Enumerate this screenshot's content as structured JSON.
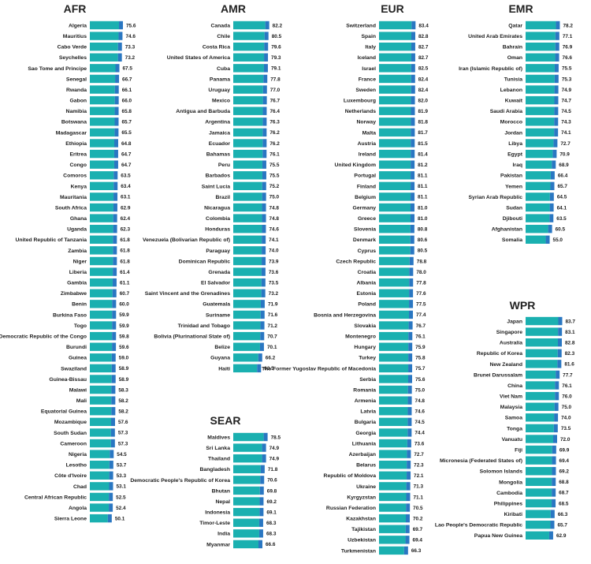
{
  "colors": {
    "bar": "#1ab0b0",
    "bar_tip": "#2a77c2",
    "text": "#1a1a1a"
  },
  "chart_data": [
    {
      "type": "bar",
      "orientation": "horizontal",
      "title": "AFR",
      "xlim": [
        0,
        90
      ],
      "categories": [
        "Algeria",
        "Mauritius",
        "Cabo Verde",
        "Seychelles",
        "Sao Tome and Principe",
        "Senegal",
        "Rwanda",
        "Gabon",
        "Namibia",
        "Botswana",
        "Madagascar",
        "Ethiopia",
        "Eritrea",
        "Congo",
        "Comoros",
        "Kenya",
        "Mauritania",
        "South Africa",
        "Ghana",
        "Uganda",
        "United Republic of Tanzania",
        "Zambia",
        "Niger",
        "Liberia",
        "Gambia",
        "Zimbabwe",
        "Benin",
        "Burkina Faso",
        "Togo",
        "Democratic Republic of the Congo",
        "Burundi",
        "Guinea",
        "Swaziland",
        "Guinea-Bissau",
        "Malawi",
        "Mali",
        "Equatorial Guinea",
        "Mozambique",
        "South Sudan",
        "Cameroon",
        "Nigeria",
        "Lesotho",
        "Côte d'Ivoire",
        "Chad",
        "Central African Republic",
        "Angola",
        "Sierra Leone"
      ],
      "values": [
        75.6,
        74.6,
        73.3,
        73.2,
        67.5,
        66.7,
        66.1,
        66.0,
        65.8,
        65.7,
        65.5,
        64.8,
        64.7,
        64.7,
        63.5,
        63.4,
        63.1,
        62.9,
        62.4,
        62.3,
        61.8,
        61.8,
        61.8,
        61.4,
        61.1,
        60.7,
        60.0,
        59.9,
        59.9,
        59.8,
        59.6,
        59.0,
        58.9,
        58.9,
        58.3,
        58.2,
        58.2,
        57.6,
        57.3,
        57.3,
        54.5,
        53.7,
        53.3,
        53.1,
        52.5,
        52.4,
        50.1
      ],
      "value_labels": [
        "75.6",
        "74.6",
        "73.3",
        "73.2",
        "67.5",
        "66.7",
        "66.1",
        "66.0",
        "65.8",
        "65.7",
        "65.5",
        "64.8",
        "64.7",
        "64.7",
        "63.5",
        "63.4",
        "63.1",
        "62.9",
        "62.4",
        "62.3",
        "61.8",
        "61.8",
        "61.8",
        "61.4",
        "61.1",
        "60.7",
        "60.0",
        "59.9",
        "59.9",
        "59.8",
        "59.6",
        "59.0",
        "58.9",
        "58.9",
        "58.3",
        "58.2",
        "58.2",
        "57.6",
        "57.3",
        "57.3",
        "54.5",
        "53.7",
        "53.3",
        "53.1",
        "52.5",
        "52.4",
        "50.1"
      ]
    },
    {
      "type": "bar",
      "orientation": "horizontal",
      "title": "AMR",
      "xlim": [
        0,
        90
      ],
      "categories": [
        "Canada",
        "Chile",
        "Costa Rica",
        "United States of America",
        "Cuba",
        "Panama",
        "Uruguay",
        "Mexico",
        "Antigua and Barbuda",
        "Argentina",
        "Jamaica",
        "Ecuador",
        "Bahamas",
        "Peru",
        "Barbados",
        "Saint Lucia",
        "Brazil",
        "Nicaragua",
        "Colombia",
        "Honduras",
        "Venezuela (Bolivarian Republic of)",
        "Paraguay",
        "Dominican Republic",
        "Grenada",
        "El Salvador",
        "Saint Vincent and the Grenadines",
        "Guatemala",
        "Suriname",
        "Trinidad and Tobago",
        "Bolivia (Plurinational State of)",
        "Belize",
        "Guyana",
        "Haiti"
      ],
      "values": [
        82.2,
        80.5,
        79.6,
        79.3,
        79.1,
        77.8,
        77.0,
        76.7,
        76.4,
        76.3,
        76.2,
        76.2,
        76.1,
        75.5,
        75.5,
        75.2,
        75.0,
        74.8,
        74.8,
        74.6,
        74.1,
        74.0,
        73.9,
        73.6,
        73.5,
        73.2,
        71.9,
        71.6,
        71.2,
        70.7,
        70.1,
        66.2,
        63.5
      ],
      "value_labels": [
        "82.2",
        "80.5",
        "79.6",
        "79.3",
        "79.1",
        "77.8",
        "77.0",
        "76.7",
        "76.4",
        "76.3",
        "76.2",
        "76.2",
        "76.1",
        "75.5",
        "75.5",
        "75.2",
        "75.0",
        "74.8",
        "74.8",
        "74.6",
        "74.1",
        "74.0",
        "73.9",
        "73.6",
        "73.5",
        "73.2",
        "71.9",
        "71.6",
        "71.2",
        "70.7",
        "70.1",
        "66.2",
        "63.5"
      ]
    },
    {
      "type": "bar",
      "orientation": "horizontal",
      "title": "SEAR",
      "xlim": [
        0,
        90
      ],
      "categories": [
        "Maldives",
        "Sri Lanka",
        "Thailand",
        "Bangladesh",
        "Democratic People's Republic of Korea",
        "Bhutan",
        "Nepal",
        "Indonesia",
        "Timor-Leste",
        "India",
        "Myanmar"
      ],
      "values": [
        78.5,
        74.9,
        74.9,
        71.8,
        70.6,
        69.8,
        69.2,
        69.1,
        68.3,
        68.3,
        66.6
      ],
      "value_labels": [
        "78.5",
        "74.9",
        "74.9",
        "71.8",
        "70.6",
        "69.8",
        "69.2",
        "69.1",
        "68.3",
        "68.3",
        "66.6"
      ]
    },
    {
      "type": "bar",
      "orientation": "horizontal",
      "title": "EUR",
      "xlim": [
        0,
        90
      ],
      "categories": [
        "Switzerland",
        "Spain",
        "Italy",
        "Iceland",
        "Israel",
        "France",
        "Sweden",
        "Luxembourg",
        "Netherlands",
        "Norway",
        "Malta",
        "Austria",
        "Ireland",
        "United Kingdom",
        "Portugal",
        "Finland",
        "Belgium",
        "Germany",
        "Greece",
        "Slovenia",
        "Denmark",
        "Cyprus",
        "Czech Republic",
        "Croatia",
        "Albania",
        "Estonia",
        "Poland",
        "Bosnia and Herzegovina",
        "Slovakia",
        "Montenegro",
        "Hungary",
        "Turkey",
        "The Former Yugoslav Republic of Macedonia",
        "Serbia",
        "Romania",
        "Armenia",
        "Latvia",
        "Bulgaria",
        "Georgia",
        "Lithuania",
        "Azerbaijan",
        "Belarus",
        "Republic of Moldova",
        "Ukraine",
        "Kyrgyzstan",
        "Russian Federation",
        "Kazakhstan",
        "Tajikistan",
        "Uzbekistan",
        "Turkmenistan"
      ],
      "values": [
        83.4,
        82.8,
        82.7,
        82.7,
        82.5,
        82.4,
        82.4,
        82.0,
        81.9,
        81.8,
        81.7,
        81.5,
        81.4,
        81.2,
        81.1,
        81.1,
        81.1,
        81.0,
        81.0,
        80.8,
        80.6,
        80.5,
        78.8,
        78.0,
        77.8,
        77.6,
        77.5,
        77.4,
        76.7,
        76.1,
        75.9,
        75.8,
        75.7,
        75.6,
        75.0,
        74.8,
        74.6,
        74.5,
        74.4,
        73.6,
        72.7,
        72.3,
        72.1,
        71.3,
        71.1,
        70.5,
        70.2,
        69.7,
        69.4,
        66.3
      ],
      "value_labels": [
        "83.4",
        "82.8",
        "82.7",
        "82.7",
        "82.5",
        "82.4",
        "82.4",
        "82.0",
        "81.9",
        "81.8",
        "81.7",
        "81.5",
        "81.4",
        "81.2",
        "81.1",
        "81.1",
        "81.1",
        "81.0",
        "81.0",
        "80.8",
        "80.6",
        "80.5",
        "78.8",
        "78.0",
        "77.8",
        "77.6",
        "77.5",
        "77.4",
        "76.7",
        "76.1",
        "75.9",
        "75.8",
        "75.7",
        "75.6",
        "75.0",
        "74.8",
        "74.6",
        "74.5",
        "74.4",
        "73.6",
        "72.7",
        "72.3",
        "72.1",
        "71.3",
        "71.1",
        "70.5",
        "70.2",
        "69.7",
        "69.4",
        "66.3"
      ]
    },
    {
      "type": "bar",
      "orientation": "horizontal",
      "title": "EMR",
      "xlim": [
        0,
        90
      ],
      "categories": [
        "Qatar",
        "United Arab Emirates",
        "Bahrain",
        "Oman",
        "Iran (Islamic Republic of)",
        "Tunisia",
        "Lebanon",
        "Kuwait",
        "Saudi Arabia",
        "Morocco",
        "Jordan",
        "Libya",
        "Egypt",
        "Iraq",
        "Pakistan",
        "Yemen",
        "Syrian Arab Republic",
        "Sudan",
        "Djibouti",
        "Afghanistan",
        "Somalia"
      ],
      "values": [
        78.2,
        77.1,
        76.9,
        76.6,
        75.5,
        75.3,
        74.9,
        74.7,
        74.5,
        74.3,
        74.1,
        72.7,
        70.9,
        68.9,
        66.4,
        65.7,
        64.5,
        64.1,
        63.5,
        60.5,
        55.0
      ],
      "value_labels": [
        "78.2",
        "77.1",
        "76.9",
        "76.6",
        "75.5",
        "75.3",
        "74.9",
        "74.7",
        "74.5",
        "74.3",
        "74.1",
        "72.7",
        "70.9",
        "68.9",
        "66.4",
        "65.7",
        "64.5",
        "64.1",
        "63.5",
        "60.5",
        "55.0"
      ]
    },
    {
      "type": "bar",
      "orientation": "horizontal",
      "title": "WPR",
      "xlim": [
        0,
        90
      ],
      "categories": [
        "Japan",
        "Singapore",
        "Australia",
        "Republic of Korea",
        "New Zealand",
        "Brunei Darussalam",
        "China",
        "Viet Nam",
        "Malaysia",
        "Samoa",
        "Tonga",
        "Vanuatu",
        "Fiji",
        "Micronesia (Federated States of)",
        "Solomon Islands",
        "Mongolia",
        "Cambodia",
        "Philippines",
        "Kiribati",
        "Lao People's Democratic Republic",
        "Papua New Guinea"
      ],
      "values": [
        83.7,
        83.1,
        82.8,
        82.3,
        81.6,
        77.7,
        76.1,
        76.0,
        75.0,
        74.0,
        73.5,
        72.0,
        69.9,
        69.4,
        69.2,
        68.8,
        68.7,
        68.5,
        66.3,
        65.7,
        62.9
      ],
      "value_labels": [
        "83.7",
        "83.1",
        "82.8",
        "82.3",
        "81.6",
        "77.7",
        "76.1",
        "76.0",
        "75.0",
        "74.0",
        "73.5",
        "72.0",
        "69.9",
        "69.4",
        "69.2",
        "68.8",
        "68.7",
        "68.5",
        "66.3",
        "65.7",
        "62.9"
      ]
    }
  ]
}
